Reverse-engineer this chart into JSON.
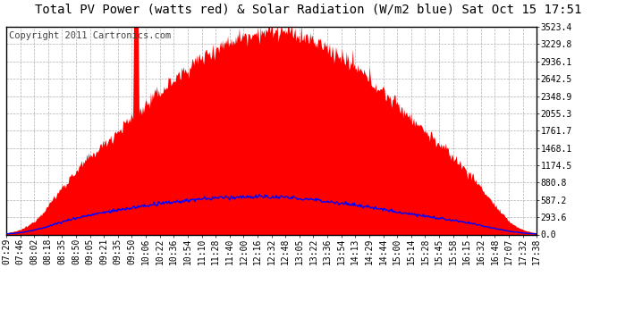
{
  "title": "Total PV Power (watts red) & Solar Radiation (W/m2 blue) Sat Oct 15 17:51",
  "copyright": "Copyright 2011 Cartronics.com",
  "background_color": "#ffffff",
  "plot_bg_color": "#ffffff",
  "ylim": [
    0,
    3523.4
  ],
  "yticks": [
    0.0,
    293.6,
    587.2,
    880.8,
    1174.5,
    1468.1,
    1761.7,
    2055.3,
    2348.9,
    2642.5,
    2936.1,
    3229.8,
    3523.4
  ],
  "ytick_labels": [
    "0.0",
    "293.6",
    "587.2",
    "880.8",
    "1174.5",
    "1468.1",
    "1761.7",
    "2055.3",
    "2348.9",
    "2642.5",
    "2936.1",
    "3229.8",
    "3523.4"
  ],
  "xtick_labels": [
    "07:29",
    "07:46",
    "08:02",
    "08:18",
    "08:35",
    "08:50",
    "09:05",
    "09:21",
    "09:35",
    "09:50",
    "10:06",
    "10:22",
    "10:36",
    "10:54",
    "11:10",
    "11:28",
    "11:40",
    "12:00",
    "12:16",
    "12:32",
    "12:48",
    "13:05",
    "13:22",
    "13:36",
    "13:54",
    "14:13",
    "14:29",
    "14:44",
    "15:00",
    "15:14",
    "15:28",
    "15:45",
    "15:58",
    "16:15",
    "16:32",
    "16:48",
    "17:07",
    "17:32",
    "17:38"
  ],
  "pv_fill_color": "#ff0000",
  "solar_line_color": "#0000ff",
  "grid_color": "#b0b0b0",
  "title_fontsize": 10,
  "tick_fontsize": 7,
  "copyright_fontsize": 7.5
}
